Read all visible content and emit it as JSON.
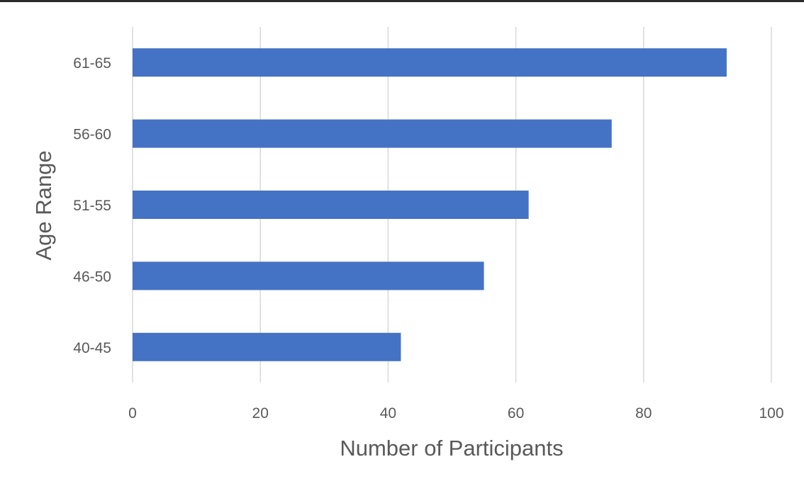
{
  "chart_data": {
    "type": "bar",
    "orientation": "horizontal",
    "title": "",
    "xlabel": "Number of Participants",
    "ylabel": "Age Range",
    "categories": [
      "40-45",
      "46-50",
      "51-55",
      "56-60",
      "61-65"
    ],
    "values": [
      42,
      55,
      62,
      75,
      93
    ],
    "xlim": [
      0,
      100
    ],
    "x_ticks": [
      "0",
      "20",
      "40",
      "60",
      "80",
      "100"
    ],
    "grid": "vertical",
    "legend": "none",
    "bar_color": "#4472C4",
    "gridline_color": "#D9D9D9",
    "text_color": "#595959"
  }
}
